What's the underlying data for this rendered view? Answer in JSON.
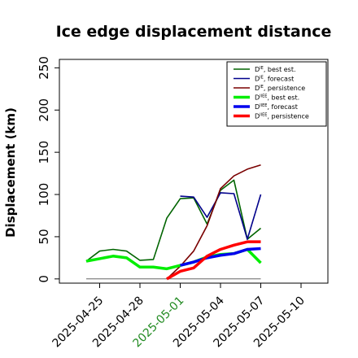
{
  "chart_data": {
    "type": "line",
    "title": "Ice edge displacement distance",
    "xlabel": "",
    "ylabel": "Displacement (km)",
    "x_range": [
      "2025-04-22",
      "2025-05-12"
    ],
    "ylim": [
      -5,
      260
    ],
    "y_ticks": [
      0,
      50,
      100,
      150,
      200,
      250
    ],
    "x_ticks": [
      {
        "date": "2025-04-25",
        "label": "2025-04-25",
        "color": "#000000"
      },
      {
        "date": "2025-04-28",
        "label": "2025-04-28",
        "color": "#000000"
      },
      {
        "date": "2025-05-01",
        "label": "2025-05-01",
        "color": "#228b22"
      },
      {
        "date": "2025-05-04",
        "label": "2025-05-04",
        "color": "#000000"
      },
      {
        "date": "2025-05-07",
        "label": "2025-05-07",
        "color": "#000000"
      },
      {
        "date": "2025-05-10",
        "label": "2025-05-10",
        "color": "#000000"
      }
    ],
    "grid": false,
    "legend_position": "top-right",
    "baseline": {
      "y": 0,
      "x_start": "2025-04-24",
      "x_end": "2025-05-07",
      "color": "#666666"
    },
    "series": [
      {
        "name_main": "D",
        "name_sup": "IE",
        "name_rest": ", best est.",
        "color": "#006400",
        "width": 1.6,
        "points": [
          [
            "2025-04-24",
            21
          ],
          [
            "2025-04-25",
            33
          ],
          [
            "2025-04-26",
            35
          ],
          [
            "2025-04-27",
            33
          ],
          [
            "2025-04-28",
            22
          ],
          [
            "2025-04-29",
            23
          ],
          [
            "2025-04-30",
            72
          ],
          [
            "2025-05-01",
            95
          ],
          [
            "2025-05-02",
            96
          ],
          [
            "2025-05-03",
            65
          ],
          [
            "2025-05-04",
            105
          ],
          [
            "2025-05-05",
            117
          ],
          [
            "2025-05-06",
            47
          ],
          [
            "2025-05-07",
            60
          ]
        ]
      },
      {
        "name_main": "D",
        "name_sup": "IE",
        "name_rest": ", forecast",
        "color": "#00008b",
        "width": 1.6,
        "points": [
          [
            "2025-05-01",
            98
          ],
          [
            "2025-05-02",
            97
          ],
          [
            "2025-05-03",
            73
          ],
          [
            "2025-05-04",
            102
          ],
          [
            "2025-05-05",
            101
          ],
          [
            "2025-05-06",
            47
          ],
          [
            "2025-05-07",
            100
          ]
        ]
      },
      {
        "name_main": "D",
        "name_sup": "IE",
        "name_rest": ", persistence",
        "color": "#7a0000",
        "width": 1.6,
        "points": [
          [
            "2025-04-30",
            0
          ],
          [
            "2025-05-01",
            15
          ],
          [
            "2025-05-02",
            33
          ],
          [
            "2025-05-03",
            63
          ],
          [
            "2025-05-04",
            107
          ],
          [
            "2025-05-05",
            122
          ],
          [
            "2025-05-06",
            130
          ],
          [
            "2025-05-07",
            135
          ]
        ]
      },
      {
        "name_main": "D",
        "name_sup": "IIEE",
        "name_rest": ", best est.",
        "color": "#00ee00",
        "width": 3.5,
        "points": [
          [
            "2025-04-24",
            21
          ],
          [
            "2025-04-25",
            24
          ],
          [
            "2025-04-26",
            27
          ],
          [
            "2025-04-27",
            25
          ],
          [
            "2025-04-28",
            14
          ],
          [
            "2025-04-29",
            14
          ],
          [
            "2025-04-30",
            12
          ],
          [
            "2025-05-01",
            16
          ],
          [
            "2025-05-02",
            20
          ],
          [
            "2025-05-03",
            26
          ],
          [
            "2025-05-04",
            29
          ],
          [
            "2025-05-05",
            30
          ],
          [
            "2025-05-06",
            35
          ],
          [
            "2025-05-07",
            19
          ]
        ]
      },
      {
        "name_main": "D",
        "name_sup": "IIEE",
        "name_rest": ", forecast",
        "color": "#0000ee",
        "width": 3.5,
        "points": [
          [
            "2025-05-01",
            16
          ],
          [
            "2025-05-02",
            20
          ],
          [
            "2025-05-03",
            25
          ],
          [
            "2025-05-04",
            28
          ],
          [
            "2025-05-05",
            30
          ],
          [
            "2025-05-06",
            35
          ],
          [
            "2025-05-07",
            36
          ]
        ]
      },
      {
        "name_main": "D",
        "name_sup": "IIEE",
        "name_rest": ", persistence",
        "color": "#ff0000",
        "width": 3.5,
        "points": [
          [
            "2025-04-30",
            0
          ],
          [
            "2025-05-01",
            9
          ],
          [
            "2025-05-02",
            13
          ],
          [
            "2025-05-03",
            27
          ],
          [
            "2025-05-04",
            35
          ],
          [
            "2025-05-05",
            40
          ],
          [
            "2025-05-06",
            44
          ],
          [
            "2025-05-07",
            44
          ]
        ]
      }
    ]
  }
}
